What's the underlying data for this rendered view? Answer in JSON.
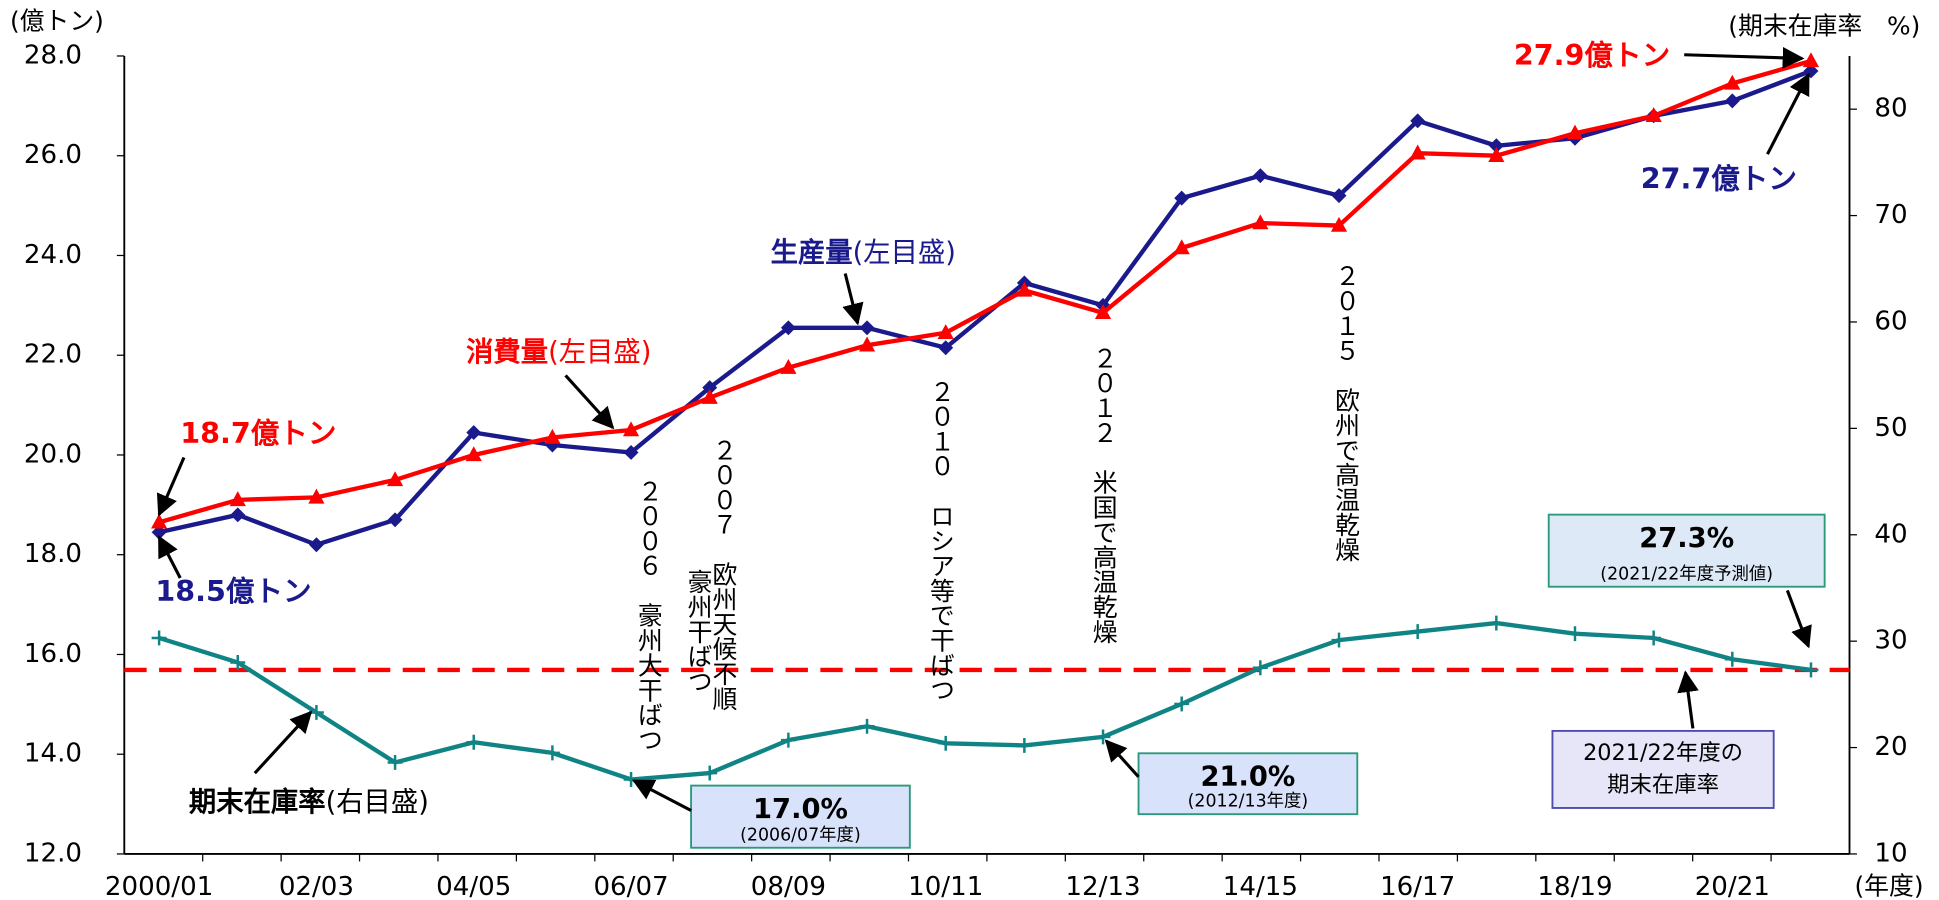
{
  "chart_data": {
    "type": "line",
    "y_label": "(億トン)",
    "y2_label": "(期末在庫率　%)",
    "x_label": "(年度)",
    "categories": [
      "2000/01",
      null,
      "02/03",
      null,
      "04/05",
      null,
      "06/07",
      null,
      "08/09",
      null,
      "10/11",
      null,
      "12/13",
      null,
      "14/15",
      null,
      "16/17",
      null,
      "18/19",
      null,
      "20/21",
      null
    ],
    "series": [
      {
        "name": "生産量",
        "scale_note": "(左目盛)",
        "color": "#1a1a8c",
        "marker": "diamond",
        "values": [
          18.45,
          18.8,
          18.2,
          18.7,
          20.45,
          20.2,
          20.05,
          21.35,
          22.55,
          22.55,
          22.15,
          23.45,
          23.0,
          25.15,
          25.6,
          25.2,
          26.7,
          26.2,
          26.35,
          26.8,
          27.1,
          27.7
        ]
      },
      {
        "name": "消費量",
        "scale_note": "(左目盛)",
        "color": "#ff0000",
        "marker": "triangle",
        "values": [
          18.65,
          19.1,
          19.15,
          19.5,
          20.0,
          20.35,
          20.5,
          21.15,
          21.75,
          22.2,
          22.45,
          23.3,
          22.85,
          24.15,
          24.65,
          24.6,
          26.05,
          26.0,
          26.45,
          26.8,
          27.45,
          27.9
        ]
      },
      {
        "name": "期末在庫率",
        "scale_note": "(右目盛)",
        "color": "#108484",
        "marker": "plus",
        "axis": "y2",
        "values": [
          30.3,
          28.0,
          23.3,
          18.6,
          20.5,
          19.5,
          17.0,
          17.6,
          20.7,
          22.0,
          20.4,
          20.2,
          21.0,
          24.1,
          27.5,
          30.1,
          30.9,
          31.7,
          30.7,
          30.3,
          28.3,
          27.3
        ]
      }
    ],
    "ylim": [
      12,
      28
    ],
    "yticks": [
      {
        "value": 12,
        "label": "12.0"
      },
      {
        "value": 14,
        "label": "14.0"
      },
      {
        "value": 16,
        "label": "16.0"
      },
      {
        "value": 18,
        "label": "18.0"
      },
      {
        "value": 20,
        "label": "20.0"
      },
      {
        "value": 22,
        "label": "22.0"
      },
      {
        "value": 24,
        "label": "24.0"
      },
      {
        "value": 26,
        "label": "26.0"
      },
      {
        "value": 28,
        "label": "28.0"
      }
    ],
    "y2lim": [
      10,
      85
    ],
    "y2ticks": [
      10,
      20,
      30,
      40,
      50,
      60,
      70,
      80
    ],
    "reference_line": {
      "value": 27.3,
      "axis": "y2",
      "color": "#ff0000"
    },
    "callouts": [
      {
        "text": "18.7億トン",
        "color": "#ff0000"
      },
      {
        "text": "18.5億トン",
        "color": "#1a1a8c"
      },
      {
        "text": "27.9億トン",
        "color": "#ff0000"
      },
      {
        "text": "27.7億トン",
        "color": "#1a1a8c"
      }
    ],
    "events": [
      "２００６　豪州大干ばつ",
      "２００７　欧州天候不順",
      "豪州干ばつ",
      "２０１０　ロシア等で干ばつ",
      "２０１２　米国で高温乾燥",
      "２０１５　欧州で高温乾燥"
    ],
    "boxes": [
      {
        "lines": [
          "17.0%",
          "(2006/07年度)"
        ]
      },
      {
        "lines": [
          "21.0%",
          "(2012/13年度)"
        ]
      },
      {
        "lines": [
          "27.3%",
          "(2021/22年度予測値)"
        ]
      },
      {
        "lines": [
          "2021/22年度の",
          "期末在庫率"
        ]
      }
    ]
  }
}
